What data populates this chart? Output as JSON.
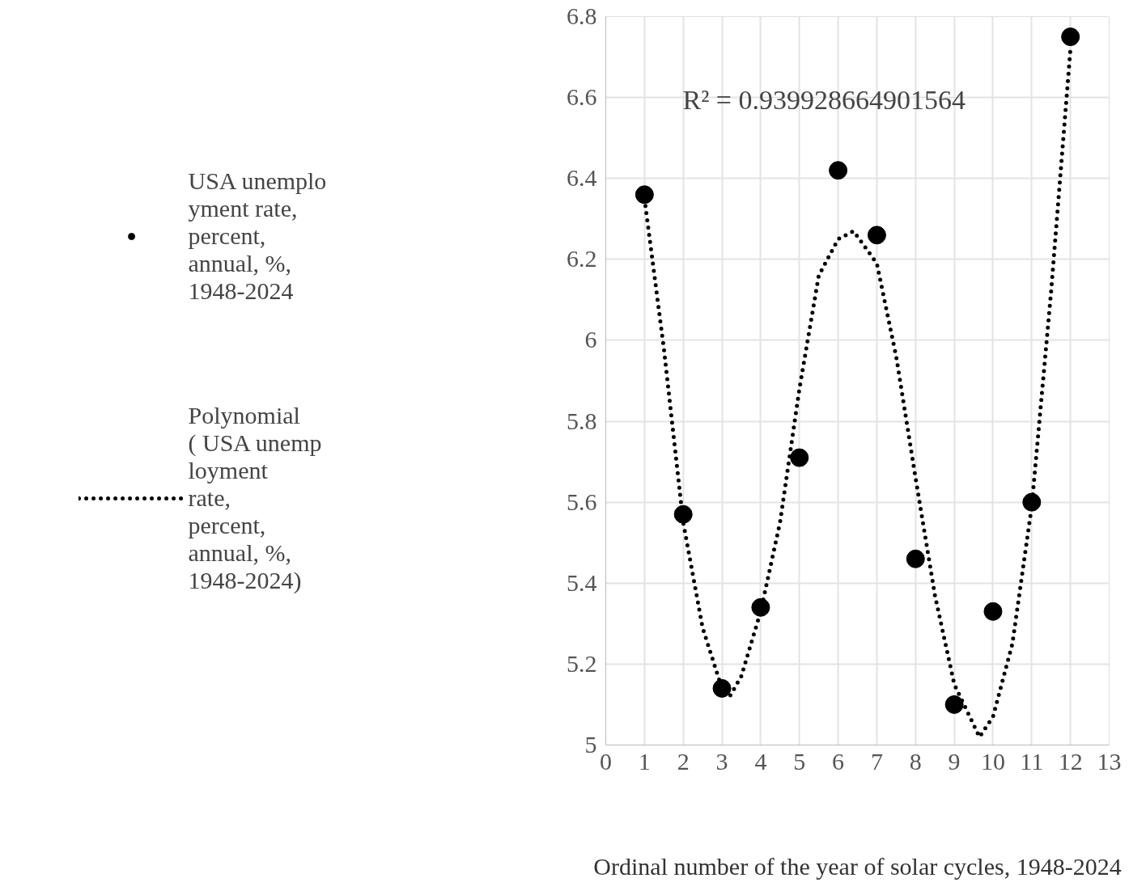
{
  "chart_data": {
    "type": "scatter",
    "xlabel": "Ordinal number of the year of solar cycles, 1948-2024",
    "annotations": [
      "R² = 0.939928664901564"
    ],
    "x": [
      1,
      2,
      3,
      4,
      5,
      6,
      7,
      8,
      9,
      10,
      11,
      12
    ],
    "series": [
      {
        "name": "USA unemployment rate, percent, annual, %, 1948-2024",
        "color": "#000000",
        "marker": "circle",
        "values": [
          6.36,
          5.57,
          5.14,
          5.34,
          5.71,
          6.42,
          6.26,
          5.46,
          5.1,
          5.33,
          5.6,
          6.75
        ]
      },
      {
        "name": "Polynomial ( USA unemployment rate, percent, annual, %, 1948-2024)",
        "type": "line",
        "line_style": "dotted",
        "color": "#000000",
        "x": [
          1,
          1.5,
          2,
          2.5,
          3,
          3.2,
          3.5,
          4,
          4.5,
          5,
          5.5,
          6,
          6.4,
          7,
          7.5,
          8,
          8.5,
          9,
          9.65,
          10,
          10.5,
          11,
          11.5,
          12
        ],
        "values": [
          6.35,
          5.98,
          5.55,
          5.29,
          5.14,
          5.12,
          5.17,
          5.33,
          5.55,
          5.88,
          6.16,
          6.25,
          6.27,
          6.19,
          5.96,
          5.66,
          5.37,
          5.15,
          5.02,
          5.07,
          5.25,
          5.59,
          6.12,
          6.72
        ]
      }
    ],
    "xlim": [
      0,
      13
    ],
    "xticks": [
      0,
      1,
      2,
      3,
      4,
      5,
      6,
      7,
      8,
      9,
      10,
      11,
      12,
      13
    ],
    "ylim": [
      5,
      6.8
    ],
    "yticks": [
      5,
      5.2,
      5.4,
      5.6,
      5.8,
      6,
      6.2,
      6.4,
      6.6,
      6.8
    ],
    "grid": true,
    "legend": "left"
  }
}
